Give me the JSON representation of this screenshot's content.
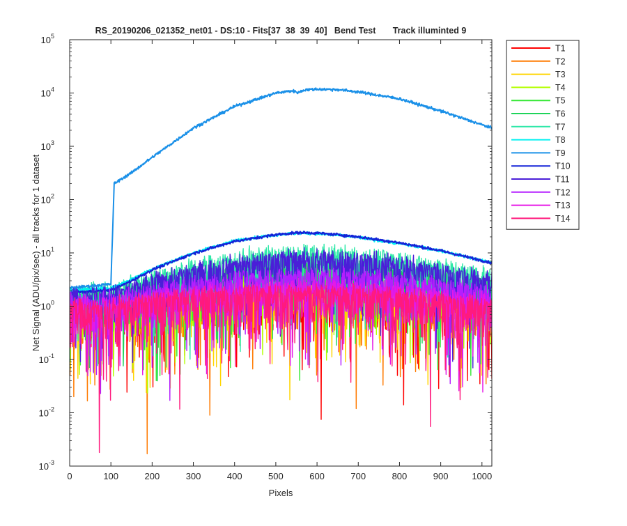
{
  "chart_data": {
    "type": "line",
    "title": "RS_20190206_021352_net01 - DS:10 - Fits[37  38  39  40]   Bend Test       Track illuminted 9",
    "xlabel": "Pixels",
    "ylabel": "Net Signal (ADU/pix/sec) - all tracks for 1 dataset",
    "xlim": [
      0,
      1024
    ],
    "ylim": [
      0.001,
      100000
    ],
    "yscale": "log",
    "grid": false,
    "legend_position": "outside-top-right",
    "x_ticks": [
      "0",
      "100",
      "200",
      "300",
      "400",
      "500",
      "600",
      "700",
      "800",
      "900",
      "1000"
    ],
    "y_ticks": [
      {
        "base": "10",
        "exp": "-3"
      },
      {
        "base": "10",
        "exp": "-2"
      },
      {
        "base": "10",
        "exp": "-1"
      },
      {
        "base": "10",
        "exp": "0"
      },
      {
        "base": "10",
        "exp": "1"
      },
      {
        "base": "10",
        "exp": "2"
      },
      {
        "base": "10",
        "exp": "3"
      },
      {
        "base": "10",
        "exp": "4"
      },
      {
        "base": "10",
        "exp": "5"
      }
    ],
    "x_points": [
      0,
      100,
      108,
      150,
      200,
      300,
      400,
      500,
      540,
      555,
      570,
      600,
      650,
      700,
      800,
      900,
      1024
    ],
    "series": [
      {
        "name": "T1",
        "color": "#ff0000",
        "kind": "noise",
        "values": [
          0.9,
          0.9,
          0.9,
          1.0,
          1.1,
          1.3,
          1.5,
          1.6,
          1.6,
          1.6,
          1.6,
          1.6,
          1.5,
          1.5,
          1.3,
          1.1,
          0.9
        ]
      },
      {
        "name": "T2",
        "color": "#ff7a00",
        "kind": "noise",
        "values": [
          0.9,
          0.9,
          0.9,
          1.0,
          1.1,
          1.3,
          1.5,
          1.6,
          1.6,
          1.6,
          1.6,
          1.6,
          1.5,
          1.5,
          1.3,
          1.1,
          0.9
        ]
      },
      {
        "name": "T3",
        "color": "#ffd500",
        "kind": "noise",
        "values": [
          1.0,
          1.0,
          1.0,
          1.1,
          1.3,
          1.5,
          1.8,
          2.0,
          2.0,
          2.0,
          2.0,
          2.0,
          2.0,
          1.9,
          1.7,
          1.4,
          1.1
        ]
      },
      {
        "name": "T4",
        "color": "#b4ff00",
        "kind": "noise",
        "values": [
          1.0,
          1.0,
          1.0,
          1.2,
          1.5,
          2.0,
          2.6,
          3.0,
          3.1,
          3.1,
          3.1,
          3.1,
          3.0,
          2.9,
          2.5,
          2.0,
          1.4
        ]
      },
      {
        "name": "T5",
        "color": "#35e835",
        "kind": "noise",
        "values": [
          1.2,
          1.3,
          1.3,
          1.5,
          2.0,
          2.8,
          3.8,
          4.5,
          4.6,
          4.6,
          4.6,
          4.6,
          4.5,
          4.3,
          3.6,
          2.8,
          1.8
        ]
      },
      {
        "name": "T6",
        "color": "#1fd45a",
        "kind": "noise",
        "values": [
          1.3,
          1.4,
          1.4,
          1.7,
          2.3,
          3.4,
          4.8,
          5.8,
          6.0,
          6.0,
          6.0,
          6.0,
          5.8,
          5.5,
          4.6,
          3.4,
          2.2
        ]
      },
      {
        "name": "T7",
        "color": "#2ee8a8",
        "kind": "noise",
        "values": [
          1.6,
          1.8,
          1.8,
          2.3,
          3.2,
          5.0,
          7.2,
          8.6,
          8.9,
          9.0,
          9.0,
          9.0,
          8.8,
          8.4,
          7.0,
          5.2,
          3.2
        ]
      },
      {
        "name": "T8",
        "color": "#00f0f0",
        "kind": "smooth",
        "values": [
          2.0,
          2.2,
          2.3,
          3.2,
          5.0,
          10.0,
          17.0,
          22.0,
          23.0,
          23.5,
          23.5,
          23.0,
          21.5,
          19.5,
          15.0,
          11.0,
          6.5
        ]
      },
      {
        "name": "T9",
        "color": "#1a90e8",
        "kind": "smooth",
        "values": [
          2.2,
          2.6,
          200,
          320,
          620,
          2200,
          5600,
          10000,
          11000,
          10200,
          11500,
          11800,
          11600,
          10500,
          7800,
          4600,
          2200
        ]
      },
      {
        "name": "T10",
        "color": "#1424d8",
        "kind": "smooth",
        "values": [
          1.8,
          2.0,
          2.1,
          3.0,
          4.8,
          9.8,
          16.5,
          22.0,
          23.5,
          24.0,
          24.0,
          23.5,
          22.0,
          20.0,
          15.5,
          11.0,
          6.5
        ]
      },
      {
        "name": "T11",
        "color": "#4a1ed8",
        "kind": "noise",
        "values": [
          1.5,
          1.6,
          1.6,
          2.0,
          2.7,
          4.2,
          6.0,
          7.3,
          7.6,
          7.7,
          7.7,
          7.6,
          7.4,
          7.0,
          5.9,
          4.4,
          2.8
        ]
      },
      {
        "name": "T12",
        "color": "#b41eff",
        "kind": "noise",
        "values": [
          1.2,
          1.2,
          1.2,
          1.4,
          1.7,
          2.3,
          3.0,
          3.4,
          3.5,
          3.5,
          3.5,
          3.5,
          3.4,
          3.3,
          2.8,
          2.3,
          1.6
        ]
      },
      {
        "name": "T13",
        "color": "#e619e6",
        "kind": "noise",
        "values": [
          1.0,
          1.0,
          1.0,
          1.1,
          1.3,
          1.6,
          1.9,
          2.1,
          2.1,
          2.1,
          2.1,
          2.1,
          2.1,
          2.0,
          1.8,
          1.5,
          1.1
        ]
      },
      {
        "name": "T14",
        "color": "#ff1a7d",
        "kind": "noise",
        "values": [
          0.9,
          0.9,
          0.9,
          1.0,
          1.2,
          1.4,
          1.6,
          1.7,
          1.7,
          1.7,
          1.7,
          1.7,
          1.6,
          1.6,
          1.4,
          1.2,
          0.9
        ]
      }
    ],
    "dips": [
      {
        "series": "T14",
        "x": 72,
        "y": 0.0018
      },
      {
        "series": "T2",
        "x": 188,
        "y": 0.0017
      },
      {
        "series": "T2",
        "x": 340,
        "y": 0.009
      },
      {
        "series": "T1",
        "x": 610,
        "y": 0.0075
      },
      {
        "series": "T2",
        "x": 695,
        "y": 0.012
      },
      {
        "series": "T14",
        "x": 875,
        "y": 0.0055
      },
      {
        "series": "T2",
        "x": 10,
        "y": 0.02
      },
      {
        "series": "T2",
        "x": 760,
        "y": 0.033
      },
      {
        "series": "T1",
        "x": 965,
        "y": 0.04
      },
      {
        "series": "T2",
        "x": 1010,
        "y": 0.035
      },
      {
        "series": "T3",
        "x": 50,
        "y": 0.035
      },
      {
        "series": "T1",
        "x": 40,
        "y": 0.06
      },
      {
        "series": "T3",
        "x": 1000,
        "y": 0.05
      }
    ]
  }
}
